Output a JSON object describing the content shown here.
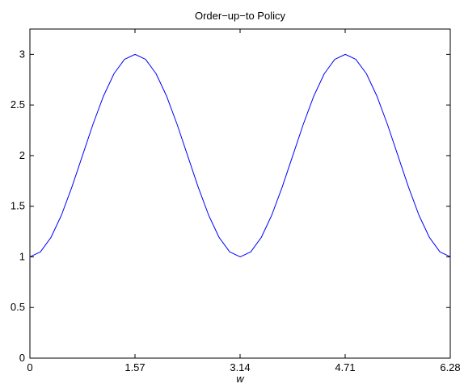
{
  "chart_data": {
    "type": "line",
    "title": "Order−up−to Policy",
    "xlabel": "w",
    "ylabel": "",
    "xlim": [
      0,
      6.28
    ],
    "ylim": [
      0,
      3.25
    ],
    "grid": false,
    "legend": "none",
    "x_ticks": [
      0,
      1.57,
      3.14,
      4.71,
      6.28
    ],
    "x_tick_labels": [
      "0",
      "1.57",
      "3.14",
      "4.71",
      "6.28"
    ],
    "y_ticks": [
      0,
      0.5,
      1,
      1.5,
      2,
      2.5,
      3
    ],
    "y_tick_labels": [
      "0",
      "0.5",
      "1",
      "1.5",
      "2",
      "2.5",
      "3"
    ],
    "series": [
      {
        "color": "#0000ff",
        "x": [
          0,
          0.157,
          0.314,
          0.471,
          0.628,
          0.785,
          0.942,
          1.099,
          1.256,
          1.413,
          1.571,
          1.728,
          1.885,
          2.042,
          2.199,
          2.356,
          2.513,
          2.67,
          2.827,
          2.985,
          3.142,
          3.299,
          3.456,
          3.613,
          3.77,
          3.927,
          4.084,
          4.241,
          4.398,
          4.555,
          4.712,
          4.869,
          5.027,
          5.184,
          5.341,
          5.498,
          5.655,
          5.812,
          5.969,
          6.126,
          6.283
        ],
        "y": [
          1,
          1.049,
          1.191,
          1.412,
          1.691,
          2,
          2.309,
          2.588,
          2.809,
          2.951,
          3,
          2.951,
          2.809,
          2.588,
          2.309,
          2,
          1.691,
          1.412,
          1.191,
          1.049,
          1,
          1.049,
          1.191,
          1.412,
          1.691,
          2,
          2.309,
          2.588,
          2.809,
          2.951,
          3,
          2.951,
          2.809,
          2.588,
          2.309,
          2,
          1.691,
          1.412,
          1.191,
          1.049,
          1
        ]
      }
    ]
  }
}
